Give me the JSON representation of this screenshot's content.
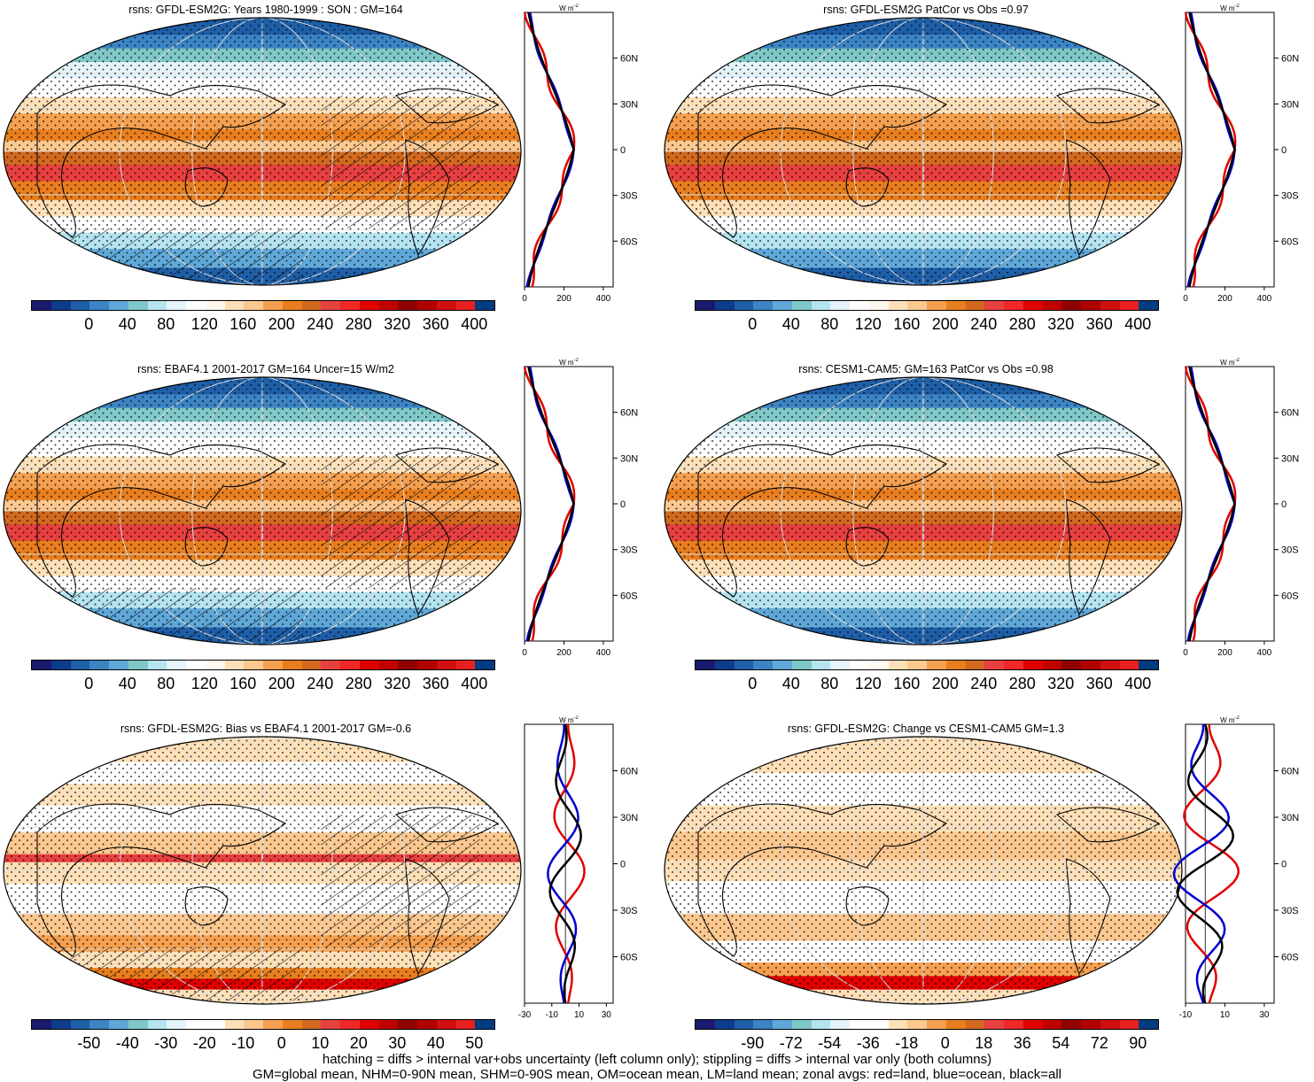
{
  "panels": [
    {
      "title": "rsns: GFDL-ESM2G: Years 1980-1999 : SON : GM=164",
      "kind": "abs",
      "hatch": true
    },
    {
      "title": "rsns: GFDL-ESM2G PatCor vs Obs =0.97",
      "kind": "abs",
      "hatch": false
    },
    {
      "title": "rsns: EBAF4.1 2001-2017 GM=164 Uncer=15 W/m2",
      "kind": "abs",
      "hatch": true
    },
    {
      "title": "rsns: CESM1-CAM5: GM=163 PatCor vs Obs =0.98",
      "kind": "abs",
      "hatch": false
    },
    {
      "title": "rsns: GFDL-ESM2G: Bias vs EBAF4.1 2001-2017  GM=-0.6",
      "kind": "bias",
      "hatch": true
    },
    {
      "title": "rsns: GFDL-ESM2G: Change vs CESM1-CAM5 GM=1.3",
      "kind": "change",
      "hatch": false
    }
  ],
  "colorbars": {
    "abs": {
      "labels": [
        "0",
        "40",
        "80",
        "120",
        "160",
        "200",
        "240",
        "280",
        "320",
        "360",
        "400"
      ],
      "colors": [
        "#1a1a6e",
        "#0d3c8c",
        "#1f5fa8",
        "#3c84c4",
        "#5fa8d8",
        "#80c8c8",
        "#b4e4f0",
        "#e4f4fa",
        "#ffffff",
        "#fff8f0",
        "#fde0b8",
        "#fbc890",
        "#f5a050",
        "#e87e1e",
        "#d2691e",
        "#e84040",
        "#f02828",
        "#e00000",
        "#c00000",
        "#900000",
        "#b00000",
        "#d01010",
        "#e82020",
        "#003c80"
      ]
    },
    "bias": {
      "labels": [
        "-50",
        "-40",
        "-30",
        "-20",
        "-10",
        "0",
        "10",
        "20",
        "30",
        "40",
        "50"
      ],
      "colors": [
        "#1a1a6e",
        "#0d3c8c",
        "#1f5fa8",
        "#3c84c4",
        "#5fa8d8",
        "#80c8c8",
        "#b4e4f0",
        "#e4f4fa",
        "#ffffff",
        "#ffffff",
        "#fde0b8",
        "#fbc890",
        "#f5a050",
        "#e87e1e",
        "#d2691e",
        "#e84040",
        "#f02828",
        "#e00000",
        "#c00000",
        "#900000",
        "#b00000",
        "#d01010",
        "#e82020",
        "#003c80"
      ]
    },
    "change": {
      "labels": [
        "-90",
        "-72",
        "-54",
        "-36",
        "-18",
        "0",
        "18",
        "36",
        "54",
        "72",
        "90"
      ],
      "colors": [
        "#1a1a6e",
        "#0d3c8c",
        "#1f5fa8",
        "#3c84c4",
        "#5fa8d8",
        "#80c8c8",
        "#b4e4f0",
        "#e4f4fa",
        "#ffffff",
        "#ffffff",
        "#fde0b8",
        "#fbc890",
        "#f5a050",
        "#e87e1e",
        "#d2691e",
        "#e84040",
        "#f02828",
        "#e00000",
        "#c00000",
        "#900000",
        "#b00000",
        "#d01010",
        "#e82020",
        "#003c80"
      ]
    }
  },
  "zonal": {
    "unit": "W m",
    "unit_sup": "-2",
    "lat_labels": [
      "60N",
      "30N",
      "0",
      "30S",
      "60S"
    ],
    "abs_ticks": [
      "0",
      "200",
      "400"
    ],
    "bias_ticks": [
      "-30",
      "-10",
      "10",
      "30"
    ],
    "change_ticks": [
      "-10",
      "10",
      "30"
    ],
    "lines": {
      "land": "#e00000",
      "ocean": "#0000d0",
      "all": "#000000"
    }
  },
  "footer": {
    "line1": "hatching = diffs > internal var+obs uncertainty (left column only); stippling = diffs > internal var only (both columns)",
    "line2": "GM=global mean, NHM=0-90N mean, SHM=0-90S mean, OM=ocean mean, LM=land mean; zonal avgs: red=land, blue=ocean, black=all"
  }
}
